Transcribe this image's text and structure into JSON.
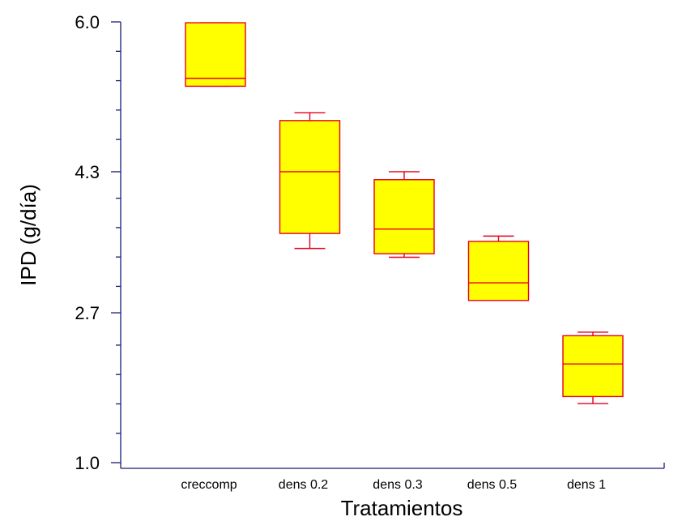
{
  "chart_data": {
    "type": "box",
    "title": "",
    "xlabel": "Tratamientos",
    "ylabel": "IPD (g/día)",
    "ylim": [
      1.0,
      6.0
    ],
    "yticks": [
      "1.0",
      "2.7",
      "4.3",
      "6.0"
    ],
    "y_minor_step": 0.3333,
    "grid": false,
    "legend": "none",
    "colors": {
      "box_fill": "#ffff00",
      "box_stroke": "#e8001c",
      "axis": "#1a1a7a"
    },
    "categories": [
      "creccomp",
      "dens 0.2",
      "dens 0.3",
      "dens 0.5",
      "dens 1"
    ],
    "boxes": [
      {
        "category": "creccomp",
        "min": 5.27,
        "q1": 5.27,
        "median": 5.36,
        "q3": 5.99,
        "max": 5.99
      },
      {
        "category": "dens 0.2",
        "min": 3.43,
        "q1": 3.6,
        "median": 4.3,
        "q3": 4.88,
        "max": 4.97
      },
      {
        "category": "dens 0.3",
        "min": 3.33,
        "q1": 3.37,
        "median": 3.65,
        "q3": 4.21,
        "max": 4.3
      },
      {
        "category": "dens 0.5",
        "min": 2.84,
        "q1": 2.84,
        "median": 3.04,
        "q3": 3.51,
        "max": 3.57
      },
      {
        "category": "dens 1",
        "min": 1.67,
        "q1": 1.75,
        "median": 2.12,
        "q3": 2.44,
        "max": 2.48
      }
    ]
  }
}
